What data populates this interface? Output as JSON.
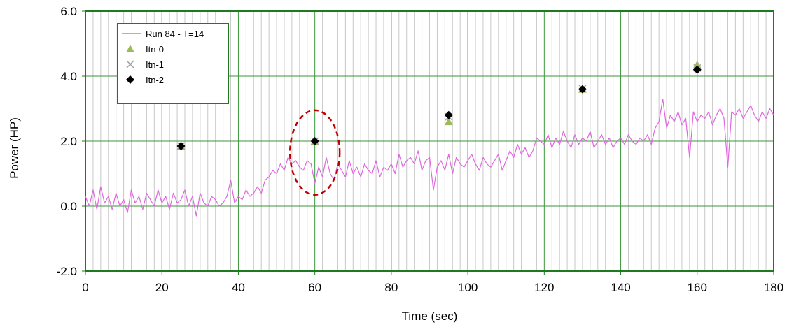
{
  "chart_data": {
    "type": "line",
    "title": "",
    "xlabel": "Time (sec)",
    "ylabel": "Power (HP)",
    "xlim": [
      0,
      180
    ],
    "ylim": [
      -2.0,
      6.0
    ],
    "x_ticks": [
      0,
      20,
      40,
      60,
      80,
      100,
      120,
      140,
      160,
      180
    ],
    "x_tick_labels": [
      "0",
      "20",
      "40",
      "60",
      "80",
      "100",
      "120",
      "140",
      "160",
      "180"
    ],
    "y_ticks": [
      -2.0,
      0.0,
      2.0,
      4.0,
      6.0
    ],
    "y_tick_labels": [
      "-2.0",
      "0.0",
      "2.0",
      "4.0",
      "6.0"
    ],
    "minor_x_gridlines_every": 2,
    "grid": true,
    "legend_position": "top-left",
    "colors": {
      "frame": "#1e7a1e",
      "major_grid": "#3c963c",
      "minor_grid": "#c8c8c8",
      "line": "#e066e0",
      "triangle": "#9bbb59",
      "cross": "#a0a0a0",
      "diamond": "#000000",
      "ellipse": "#c00000"
    },
    "series": [
      {
        "name": "Run 84 - T=14",
        "kind": "line",
        "x": [
          0,
          1,
          2,
          3,
          4,
          5,
          6,
          7,
          8,
          9,
          10,
          11,
          12,
          13,
          14,
          15,
          16,
          17,
          18,
          19,
          20,
          21,
          22,
          23,
          24,
          25,
          26,
          27,
          28,
          29,
          30,
          31,
          32,
          33,
          34,
          35,
          36,
          37,
          38,
          39,
          40,
          41,
          42,
          43,
          44,
          45,
          46,
          47,
          48,
          49,
          50,
          51,
          52,
          53,
          54,
          55,
          56,
          57,
          58,
          59,
          60,
          61,
          62,
          63,
          64,
          65,
          66,
          67,
          68,
          69,
          70,
          71,
          72,
          73,
          74,
          75,
          76,
          77,
          78,
          79,
          80,
          81,
          82,
          83,
          84,
          85,
          86,
          87,
          88,
          89,
          90,
          91,
          92,
          93,
          94,
          95,
          96,
          97,
          98,
          99,
          100,
          101,
          102,
          103,
          104,
          105,
          106,
          107,
          108,
          109,
          110,
          111,
          112,
          113,
          114,
          115,
          116,
          117,
          118,
          119,
          120,
          121,
          122,
          123,
          124,
          125,
          126,
          127,
          128,
          129,
          130,
          131,
          132,
          133,
          134,
          135,
          136,
          137,
          138,
          139,
          140,
          141,
          142,
          143,
          144,
          145,
          146,
          147,
          148,
          149,
          150,
          151,
          152,
          153,
          154,
          155,
          156,
          157,
          158,
          159,
          160,
          161,
          162,
          163,
          164,
          165,
          166,
          167,
          168,
          169,
          170,
          171,
          172,
          173,
          174,
          175,
          176,
          177,
          178,
          179,
          180
        ],
        "y": [
          0.3,
          0.0,
          0.5,
          -0.1,
          0.6,
          0.1,
          0.3,
          -0.1,
          0.4,
          0.0,
          0.2,
          -0.2,
          0.5,
          0.1,
          0.3,
          -0.1,
          0.4,
          0.2,
          0.0,
          0.5,
          0.1,
          0.3,
          -0.1,
          0.4,
          0.1,
          0.2,
          0.5,
          0.0,
          0.3,
          -0.3,
          0.4,
          0.1,
          0.0,
          0.3,
          0.2,
          0.0,
          0.1,
          0.3,
          0.8,
          0.1,
          0.3,
          0.2,
          0.5,
          0.3,
          0.4,
          0.6,
          0.4,
          0.8,
          0.9,
          1.1,
          1.0,
          1.3,
          1.1,
          1.5,
          1.3,
          1.4,
          1.2,
          1.1,
          1.4,
          1.3,
          0.7,
          1.2,
          0.9,
          1.5,
          1.0,
          0.8,
          1.3,
          1.1,
          0.9,
          1.4,
          1.0,
          1.2,
          0.9,
          1.3,
          1.1,
          1.0,
          1.4,
          0.9,
          1.2,
          1.1,
          1.3,
          1.0,
          1.6,
          1.2,
          1.4,
          1.5,
          1.3,
          1.7,
          1.1,
          1.4,
          1.5,
          0.5,
          1.2,
          1.4,
          1.1,
          1.6,
          1.0,
          1.5,
          1.3,
          1.2,
          1.4,
          1.6,
          1.3,
          1.1,
          1.5,
          1.3,
          1.2,
          1.4,
          1.6,
          1.1,
          1.4,
          1.7,
          1.5,
          1.9,
          1.6,
          1.8,
          1.5,
          1.7,
          2.1,
          2.0,
          1.9,
          2.2,
          1.8,
          2.1,
          1.9,
          2.3,
          2.0,
          1.8,
          2.2,
          1.9,
          2.1,
          2.0,
          2.3,
          1.8,
          2.0,
          2.2,
          1.9,
          2.1,
          1.8,
          2.0,
          2.1,
          1.9,
          2.2,
          2.0,
          1.9,
          2.1,
          2.0,
          2.2,
          1.9,
          2.4,
          2.6,
          3.3,
          2.4,
          2.8,
          2.6,
          2.9,
          2.5,
          2.7,
          1.5,
          2.9,
          2.6,
          2.8,
          2.7,
          2.9,
          2.5,
          2.8,
          3.0,
          2.7,
          1.2,
          2.9,
          2.8,
          3.0,
          2.7,
          2.9,
          3.1,
          2.8,
          2.6,
          2.9,
          2.7,
          3.0,
          2.8
        ]
      },
      {
        "name": "Itn-0",
        "kind": "markers",
        "marker": "triangle",
        "x": [
          25,
          60,
          95,
          130,
          160
        ],
        "y": [
          1.85,
          2.0,
          2.6,
          3.6,
          4.35
        ]
      },
      {
        "name": "Itn-1",
        "kind": "markers",
        "marker": "cross",
        "x": [
          25,
          60,
          95,
          130,
          160
        ],
        "y": [
          1.85,
          2.0,
          2.75,
          3.62,
          4.25
        ]
      },
      {
        "name": "Itn-2",
        "kind": "markers",
        "marker": "diamond",
        "x": [
          25,
          60,
          95,
          130,
          160
        ],
        "y": [
          1.85,
          2.0,
          2.8,
          3.6,
          4.2
        ]
      }
    ],
    "annotations": [
      {
        "kind": "dashed-ellipse",
        "center": [
          60,
          1.65
        ],
        "radius_x_data": 6.5,
        "radius_y_data": 1.3
      }
    ]
  }
}
